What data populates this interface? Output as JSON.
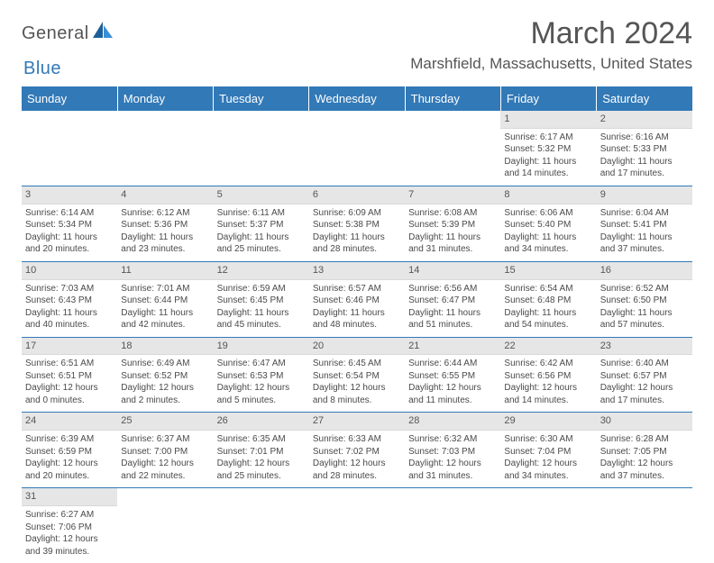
{
  "brand": {
    "main": "General",
    "sub": "Blue"
  },
  "title": "March 2024",
  "location": "Marshfield, Massachusetts, United States",
  "colors": {
    "header_bg": "#3279b7",
    "header_text": "#ffffff",
    "daynum_bg": "#e6e6e6",
    "row_border": "#3279b7",
    "body_text": "#4a4a4a",
    "title_text": "#555555",
    "page_bg": "#ffffff"
  },
  "typography": {
    "month_title_fontsize": 34,
    "location_fontsize": 17,
    "dayname_fontsize": 13,
    "cell_fontsize": 10
  },
  "daynames": [
    "Sunday",
    "Monday",
    "Tuesday",
    "Wednesday",
    "Thursday",
    "Friday",
    "Saturday"
  ],
  "weeks": [
    [
      {
        "n": "",
        "sr": "",
        "ss": "",
        "dl": ""
      },
      {
        "n": "",
        "sr": "",
        "ss": "",
        "dl": ""
      },
      {
        "n": "",
        "sr": "",
        "ss": "",
        "dl": ""
      },
      {
        "n": "",
        "sr": "",
        "ss": "",
        "dl": ""
      },
      {
        "n": "",
        "sr": "",
        "ss": "",
        "dl": ""
      },
      {
        "n": "1",
        "sr": "Sunrise: 6:17 AM",
        "ss": "Sunset: 5:32 PM",
        "dl": "Daylight: 11 hours and 14 minutes."
      },
      {
        "n": "2",
        "sr": "Sunrise: 6:16 AM",
        "ss": "Sunset: 5:33 PM",
        "dl": "Daylight: 11 hours and 17 minutes."
      }
    ],
    [
      {
        "n": "3",
        "sr": "Sunrise: 6:14 AM",
        "ss": "Sunset: 5:34 PM",
        "dl": "Daylight: 11 hours and 20 minutes."
      },
      {
        "n": "4",
        "sr": "Sunrise: 6:12 AM",
        "ss": "Sunset: 5:36 PM",
        "dl": "Daylight: 11 hours and 23 minutes."
      },
      {
        "n": "5",
        "sr": "Sunrise: 6:11 AM",
        "ss": "Sunset: 5:37 PM",
        "dl": "Daylight: 11 hours and 25 minutes."
      },
      {
        "n": "6",
        "sr": "Sunrise: 6:09 AM",
        "ss": "Sunset: 5:38 PM",
        "dl": "Daylight: 11 hours and 28 minutes."
      },
      {
        "n": "7",
        "sr": "Sunrise: 6:08 AM",
        "ss": "Sunset: 5:39 PM",
        "dl": "Daylight: 11 hours and 31 minutes."
      },
      {
        "n": "8",
        "sr": "Sunrise: 6:06 AM",
        "ss": "Sunset: 5:40 PM",
        "dl": "Daylight: 11 hours and 34 minutes."
      },
      {
        "n": "9",
        "sr": "Sunrise: 6:04 AM",
        "ss": "Sunset: 5:41 PM",
        "dl": "Daylight: 11 hours and 37 minutes."
      }
    ],
    [
      {
        "n": "10",
        "sr": "Sunrise: 7:03 AM",
        "ss": "Sunset: 6:43 PM",
        "dl": "Daylight: 11 hours and 40 minutes."
      },
      {
        "n": "11",
        "sr": "Sunrise: 7:01 AM",
        "ss": "Sunset: 6:44 PM",
        "dl": "Daylight: 11 hours and 42 minutes."
      },
      {
        "n": "12",
        "sr": "Sunrise: 6:59 AM",
        "ss": "Sunset: 6:45 PM",
        "dl": "Daylight: 11 hours and 45 minutes."
      },
      {
        "n": "13",
        "sr": "Sunrise: 6:57 AM",
        "ss": "Sunset: 6:46 PM",
        "dl": "Daylight: 11 hours and 48 minutes."
      },
      {
        "n": "14",
        "sr": "Sunrise: 6:56 AM",
        "ss": "Sunset: 6:47 PM",
        "dl": "Daylight: 11 hours and 51 minutes."
      },
      {
        "n": "15",
        "sr": "Sunrise: 6:54 AM",
        "ss": "Sunset: 6:48 PM",
        "dl": "Daylight: 11 hours and 54 minutes."
      },
      {
        "n": "16",
        "sr": "Sunrise: 6:52 AM",
        "ss": "Sunset: 6:50 PM",
        "dl": "Daylight: 11 hours and 57 minutes."
      }
    ],
    [
      {
        "n": "17",
        "sr": "Sunrise: 6:51 AM",
        "ss": "Sunset: 6:51 PM",
        "dl": "Daylight: 12 hours and 0 minutes."
      },
      {
        "n": "18",
        "sr": "Sunrise: 6:49 AM",
        "ss": "Sunset: 6:52 PM",
        "dl": "Daylight: 12 hours and 2 minutes."
      },
      {
        "n": "19",
        "sr": "Sunrise: 6:47 AM",
        "ss": "Sunset: 6:53 PM",
        "dl": "Daylight: 12 hours and 5 minutes."
      },
      {
        "n": "20",
        "sr": "Sunrise: 6:45 AM",
        "ss": "Sunset: 6:54 PM",
        "dl": "Daylight: 12 hours and 8 minutes."
      },
      {
        "n": "21",
        "sr": "Sunrise: 6:44 AM",
        "ss": "Sunset: 6:55 PM",
        "dl": "Daylight: 12 hours and 11 minutes."
      },
      {
        "n": "22",
        "sr": "Sunrise: 6:42 AM",
        "ss": "Sunset: 6:56 PM",
        "dl": "Daylight: 12 hours and 14 minutes."
      },
      {
        "n": "23",
        "sr": "Sunrise: 6:40 AM",
        "ss": "Sunset: 6:57 PM",
        "dl": "Daylight: 12 hours and 17 minutes."
      }
    ],
    [
      {
        "n": "24",
        "sr": "Sunrise: 6:39 AM",
        "ss": "Sunset: 6:59 PM",
        "dl": "Daylight: 12 hours and 20 minutes."
      },
      {
        "n": "25",
        "sr": "Sunrise: 6:37 AM",
        "ss": "Sunset: 7:00 PM",
        "dl": "Daylight: 12 hours and 22 minutes."
      },
      {
        "n": "26",
        "sr": "Sunrise: 6:35 AM",
        "ss": "Sunset: 7:01 PM",
        "dl": "Daylight: 12 hours and 25 minutes."
      },
      {
        "n": "27",
        "sr": "Sunrise: 6:33 AM",
        "ss": "Sunset: 7:02 PM",
        "dl": "Daylight: 12 hours and 28 minutes."
      },
      {
        "n": "28",
        "sr": "Sunrise: 6:32 AM",
        "ss": "Sunset: 7:03 PM",
        "dl": "Daylight: 12 hours and 31 minutes."
      },
      {
        "n": "29",
        "sr": "Sunrise: 6:30 AM",
        "ss": "Sunset: 7:04 PM",
        "dl": "Daylight: 12 hours and 34 minutes."
      },
      {
        "n": "30",
        "sr": "Sunrise: 6:28 AM",
        "ss": "Sunset: 7:05 PM",
        "dl": "Daylight: 12 hours and 37 minutes."
      }
    ],
    [
      {
        "n": "31",
        "sr": "Sunrise: 6:27 AM",
        "ss": "Sunset: 7:06 PM",
        "dl": "Daylight: 12 hours and 39 minutes."
      },
      {
        "n": "",
        "sr": "",
        "ss": "",
        "dl": ""
      },
      {
        "n": "",
        "sr": "",
        "ss": "",
        "dl": ""
      },
      {
        "n": "",
        "sr": "",
        "ss": "",
        "dl": ""
      },
      {
        "n": "",
        "sr": "",
        "ss": "",
        "dl": ""
      },
      {
        "n": "",
        "sr": "",
        "ss": "",
        "dl": ""
      },
      {
        "n": "",
        "sr": "",
        "ss": "",
        "dl": ""
      }
    ]
  ]
}
